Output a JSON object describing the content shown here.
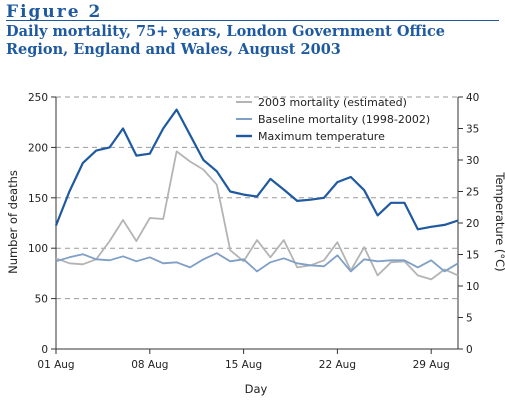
{
  "figure_label": "Figure 2",
  "figure_title": "Daily mortality, 75+ years, London Government Office Region, England and Wales, August 2003",
  "chart_data": {
    "type": "line",
    "xlabel": "Day",
    "ylabel": "Number of deaths",
    "y2label": "Temperature (°C)",
    "ylim": [
      0,
      250
    ],
    "y2lim": [
      0,
      40
    ],
    "xlim": [
      1,
      31
    ],
    "yticks": [
      0,
      50,
      100,
      150,
      200,
      250
    ],
    "y2ticks": [
      0,
      5,
      10,
      15,
      20,
      25,
      30,
      35,
      40
    ],
    "xticks": [
      {
        "day": 1,
        "label": "01 Aug"
      },
      {
        "day": 8,
        "label": "08 Aug"
      },
      {
        "day": 15,
        "label": "15 Aug"
      },
      {
        "day": 22,
        "label": "22 Aug"
      },
      {
        "day": 29,
        "label": "29 Aug"
      }
    ],
    "grid": "horizontal-dashed",
    "legend_position": "top-right",
    "days": [
      1,
      2,
      3,
      4,
      5,
      6,
      7,
      8,
      9,
      10,
      11,
      12,
      13,
      14,
      15,
      16,
      17,
      18,
      19,
      20,
      21,
      22,
      23,
      24,
      25,
      26,
      27,
      28,
      29,
      30,
      31
    ],
    "series": [
      {
        "name": "2003 mortality (estimated)",
        "axis": "left",
        "color": "#b4b4b4",
        "values": [
          90,
          85,
          84,
          89,
          107,
          128,
          107,
          130,
          129,
          196,
          186,
          178,
          163,
          98,
          87,
          108,
          91,
          108,
          81,
          83,
          88,
          106,
          78,
          101,
          73,
          86,
          87,
          73,
          69,
          79,
          73
        ]
      },
      {
        "name": "Baseline mortality (1998-2002)",
        "axis": "left",
        "color": "#7f9fc7",
        "values": [
          87,
          91,
          94,
          89,
          88,
          92,
          87,
          91,
          85,
          86,
          81,
          89,
          95,
          87,
          89,
          77,
          86,
          90,
          85,
          83,
          82,
          93,
          77,
          89,
          87,
          88,
          88,
          81,
          88,
          77,
          85
        ]
      },
      {
        "name": "Maximum temperature",
        "axis": "right",
        "color": "#1f5aa0",
        "values": [
          19.6,
          25,
          29.5,
          31.5,
          32,
          35,
          30.7,
          31,
          35,
          38,
          34,
          30,
          28.2,
          25,
          24.5,
          24.2,
          27,
          25.3,
          23.5,
          23.7,
          24,
          26.5,
          27.3,
          25.2,
          21.2,
          23.2,
          23.2,
          19,
          19.4,
          19.7,
          20.4
        ]
      }
    ]
  }
}
